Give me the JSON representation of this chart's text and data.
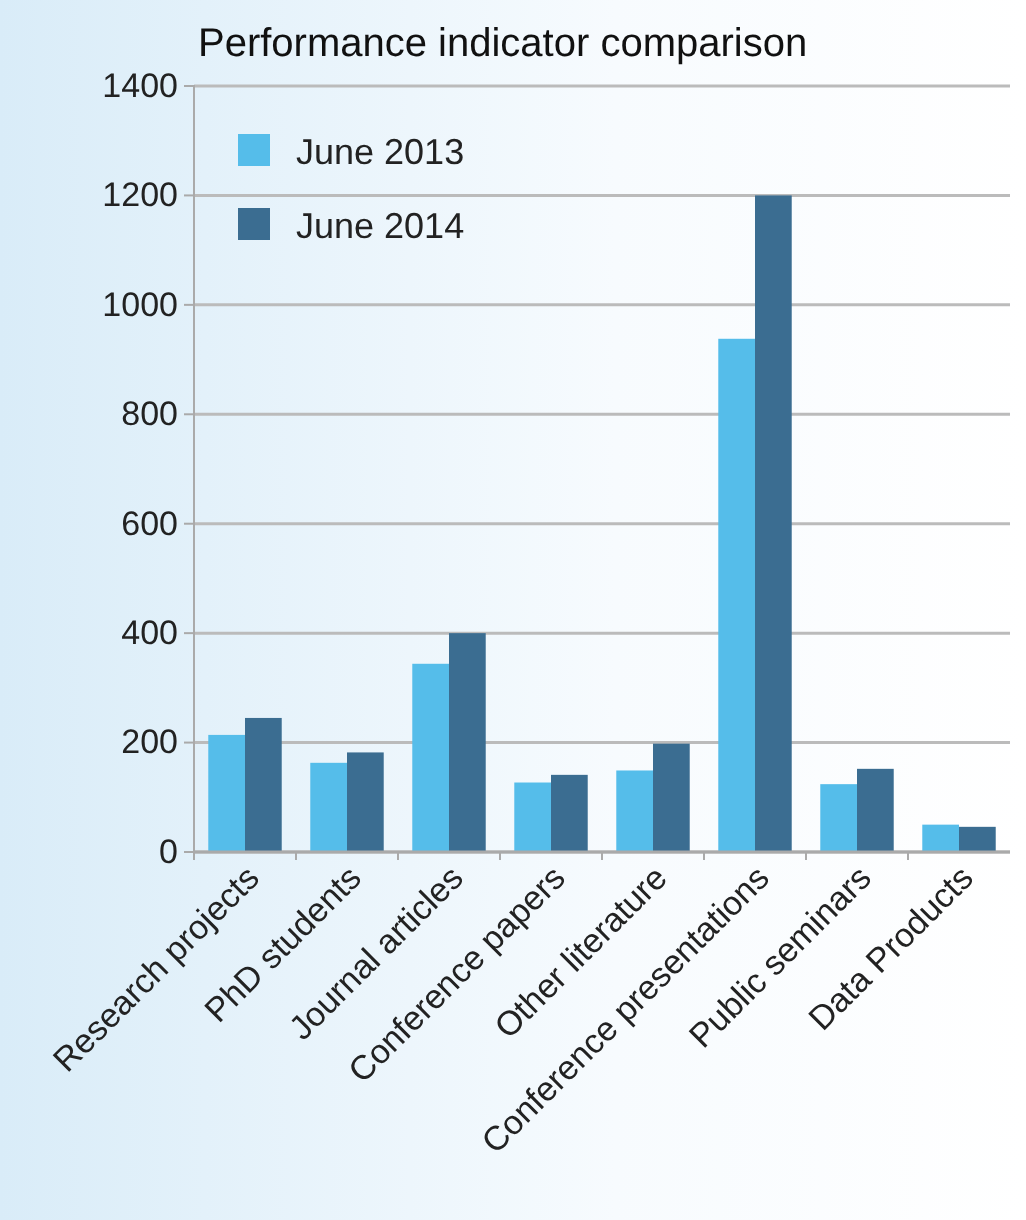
{
  "chart_data": {
    "type": "bar",
    "title": "Performance indicator comparison",
    "categories": [
      "Research projects",
      "PhD students",
      "Journal articles",
      "Conference papers",
      "Other literature",
      "Conference presentations",
      "Public seminars",
      "Data Products"
    ],
    "series": [
      {
        "name": "June 2013",
        "color": "#55bdea",
        "values": [
          214,
          163,
          344,
          127,
          149,
          938,
          124,
          50
        ]
      },
      {
        "name": "June 2014",
        "color": "#3b6d91",
        "values": [
          245,
          182,
          400,
          141,
          198,
          1200,
          152,
          46
        ]
      }
    ],
    "ylim": [
      0,
      1400
    ],
    "yticks": [
      0,
      200,
      400,
      600,
      800,
      1000,
      1200,
      1400
    ],
    "grid": "y",
    "legend": "top left"
  }
}
